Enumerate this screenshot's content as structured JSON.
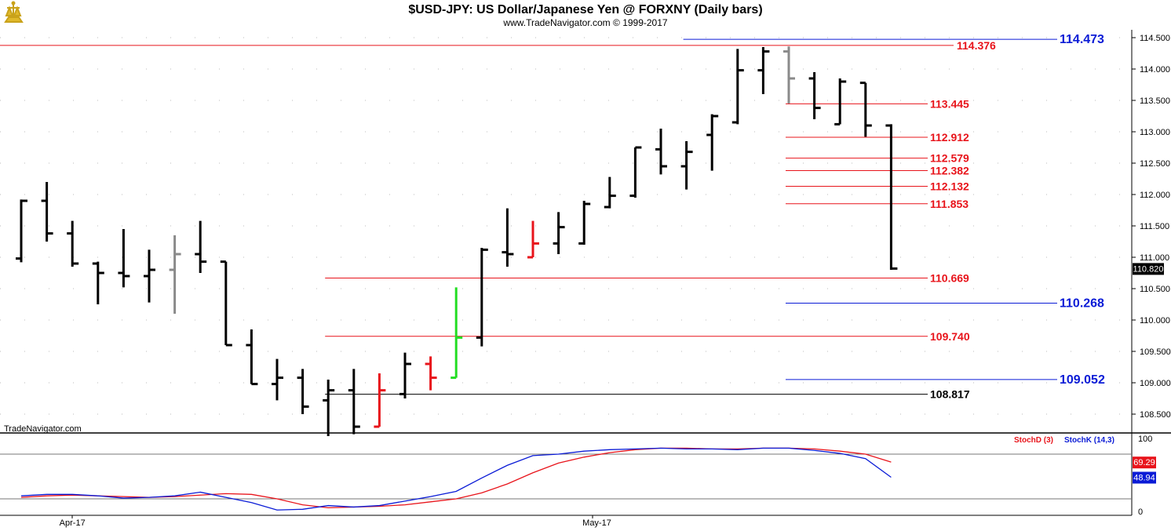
{
  "header": {
    "title": "$USD-JPY:  US Dollar/Japanese Yen @ FORXNY  (Daily bars)",
    "subtitle": "www.TradeNavigator.com © 1999-2017"
  },
  "watermark": "TradeNavigator.com",
  "colors": {
    "up": "#000000",
    "red": "#e8141b",
    "blue": "#0a1bd6",
    "green": "#22dd22",
    "gray": "#8a8a8a",
    "grid": "#bbbbbb"
  },
  "chart_data": [
    {
      "type": "ohlc",
      "price_axis": {
        "min": 108.2,
        "max": 114.6,
        "ticks": [
          "114.500",
          "114.000",
          "113.500",
          "113.000",
          "112.500",
          "112.000",
          "111.500",
          "111.000",
          "110.500",
          "110.000",
          "109.500",
          "109.000",
          "108.500"
        ],
        "last_value_label": "110.820"
      },
      "x_axis": {
        "labels": [
          {
            "text": "Apr-17",
            "bar": 2
          },
          {
            "text": "May-17",
            "bar": 22.5
          }
        ]
      },
      "bars": [
        {
          "o": 110.98,
          "h": 111.92,
          "l": 110.92,
          "c": 111.9,
          "color": "black"
        },
        {
          "o": 111.9,
          "h": 112.2,
          "l": 111.25,
          "c": 111.38,
          "color": "black"
        },
        {
          "o": 111.38,
          "h": 111.58,
          "l": 110.85,
          "c": 110.9,
          "color": "black"
        },
        {
          "o": 110.9,
          "h": 110.93,
          "l": 110.25,
          "c": 110.75,
          "color": "black"
        },
        {
          "o": 110.75,
          "h": 111.45,
          "l": 110.52,
          "c": 110.7,
          "color": "black"
        },
        {
          "o": 110.7,
          "h": 111.12,
          "l": 110.28,
          "c": 110.8,
          "color": "black"
        },
        {
          "o": 110.8,
          "h": 111.35,
          "l": 110.1,
          "c": 111.05,
          "color": "gray"
        },
        {
          "o": 111.05,
          "h": 111.58,
          "l": 110.75,
          "c": 110.93,
          "color": "black"
        },
        {
          "o": 110.93,
          "h": 110.93,
          "l": 109.6,
          "c": 109.6,
          "color": "black"
        },
        {
          "o": 109.6,
          "h": 109.85,
          "l": 108.98,
          "c": 108.98,
          "color": "black"
        },
        {
          "o": 108.98,
          "h": 109.38,
          "l": 108.72,
          "c": 109.08,
          "color": "black"
        },
        {
          "o": 109.08,
          "h": 109.22,
          "l": 108.5,
          "c": 108.62,
          "color": "black"
        },
        {
          "o": 108.72,
          "h": 109.05,
          "l": 108.15,
          "c": 108.88,
          "color": "black"
        },
        {
          "o": 108.88,
          "h": 109.22,
          "l": 108.18,
          "c": 108.3,
          "color": "black"
        },
        {
          "o": 108.3,
          "h": 109.15,
          "l": 108.3,
          "c": 108.88,
          "color": "red"
        },
        {
          "o": 108.82,
          "h": 109.48,
          "l": 108.75,
          "c": 109.3,
          "color": "black"
        },
        {
          "o": 109.3,
          "h": 109.42,
          "l": 108.88,
          "c": 109.08,
          "color": "red"
        },
        {
          "o": 109.08,
          "h": 110.52,
          "l": 109.08,
          "c": 109.72,
          "color": "green"
        },
        {
          "o": 109.72,
          "h": 111.15,
          "l": 109.58,
          "c": 111.12,
          "color": "black"
        },
        {
          "o": 111.08,
          "h": 111.78,
          "l": 110.85,
          "c": 111.05,
          "color": "black"
        },
        {
          "o": 111.0,
          "h": 111.58,
          "l": 111.0,
          "c": 111.22,
          "color": "red"
        },
        {
          "o": 111.22,
          "h": 111.72,
          "l": 111.05,
          "c": 111.48,
          "color": "black"
        },
        {
          "o": 111.22,
          "h": 111.9,
          "l": 111.2,
          "c": 111.85,
          "color": "black"
        },
        {
          "o": 111.8,
          "h": 112.28,
          "l": 111.78,
          "c": 111.98,
          "color": "black"
        },
        {
          "o": 111.98,
          "h": 112.75,
          "l": 111.95,
          "c": 112.75,
          "color": "black"
        },
        {
          "o": 112.72,
          "h": 113.05,
          "l": 112.32,
          "c": 112.45,
          "color": "black"
        },
        {
          "o": 112.45,
          "h": 112.85,
          "l": 112.08,
          "c": 112.68,
          "color": "black"
        },
        {
          "o": 112.95,
          "h": 113.28,
          "l": 112.38,
          "c": 113.25,
          "color": "black"
        },
        {
          "o": 113.15,
          "h": 114.32,
          "l": 113.12,
          "c": 113.98,
          "color": "black"
        },
        {
          "o": 113.98,
          "h": 114.35,
          "l": 113.6,
          "c": 114.28,
          "color": "black"
        },
        {
          "o": 114.28,
          "h": 114.36,
          "l": 113.45,
          "c": 113.85,
          "color": "gray"
        },
        {
          "o": 113.85,
          "h": 113.95,
          "l": 113.2,
          "c": 113.38,
          "color": "black"
        },
        {
          "o": 113.12,
          "h": 113.85,
          "l": 113.12,
          "c": 113.8,
          "color": "black"
        },
        {
          "o": 113.78,
          "h": 113.78,
          "l": 112.92,
          "c": 113.1,
          "color": "black"
        },
        {
          "o": 113.1,
          "h": 113.12,
          "l": 110.8,
          "c": 110.82,
          "color": "black"
        }
      ],
      "levels": [
        {
          "label": "114.473",
          "price": 114.473,
          "color": "blue",
          "from_bar": 26,
          "size": "big"
        },
        {
          "label": "114.376",
          "price": 114.376,
          "color": "red",
          "from_bar": -1,
          "size": "normal"
        },
        {
          "label": "113.445",
          "price": 113.445,
          "color": "red",
          "from_bar": 30,
          "size": "normal"
        },
        {
          "label": "112.912",
          "price": 112.912,
          "color": "red",
          "from_bar": 30,
          "size": "normal"
        },
        {
          "label": "112.579",
          "price": 112.579,
          "color": "red",
          "from_bar": 30,
          "size": "normal"
        },
        {
          "label": "112.382",
          "price": 112.382,
          "color": "red",
          "from_bar": 30,
          "size": "normal"
        },
        {
          "label": "112.132",
          "price": 112.132,
          "color": "red",
          "from_bar": 30,
          "size": "normal"
        },
        {
          "label": "111.853",
          "price": 111.853,
          "color": "red",
          "from_bar": 30,
          "size": "normal"
        },
        {
          "label": "110.669",
          "price": 110.669,
          "color": "red",
          "from_bar": 12,
          "size": "normal"
        },
        {
          "label": "110.268",
          "price": 110.268,
          "color": "blue",
          "from_bar": 30,
          "size": "big"
        },
        {
          "label": "109.740",
          "price": 109.74,
          "color": "red",
          "from_bar": 12,
          "size": "normal"
        },
        {
          "label": "109.052",
          "price": 109.052,
          "color": "blue",
          "from_bar": 30,
          "size": "big"
        },
        {
          "label": "108.817",
          "price": 108.817,
          "color": "black",
          "from_bar": 12,
          "size": "normal"
        }
      ]
    },
    {
      "type": "line",
      "indicator_axis": {
        "min": 0,
        "max": 100,
        "ticks": [
          "100",
          "0"
        ],
        "ref_lines": [
          80,
          20
        ]
      },
      "series": [
        {
          "name": "StochD (3)",
          "color": "red",
          "last_label": "69.29",
          "values": [
            22,
            24,
            25,
            24,
            23,
            22,
            23,
            25,
            27,
            26,
            20,
            12,
            8,
            9,
            10,
            12,
            16,
            20,
            28,
            40,
            55,
            68,
            76,
            82,
            86,
            88,
            88,
            87,
            87,
            88,
            88,
            87,
            84,
            80,
            69.29
          ]
        },
        {
          "name": "StochK (14,3)",
          "color": "blue",
          "last_label": "48.94",
          "values": [
            24,
            26,
            26,
            24,
            21,
            22,
            24,
            29,
            22,
            15,
            5,
            6,
            11,
            9,
            11,
            17,
            23,
            30,
            48,
            65,
            78,
            80,
            84,
            86,
            87,
            88,
            87,
            87,
            86,
            88,
            88,
            85,
            81,
            74,
            48.94
          ]
        }
      ]
    }
  ]
}
